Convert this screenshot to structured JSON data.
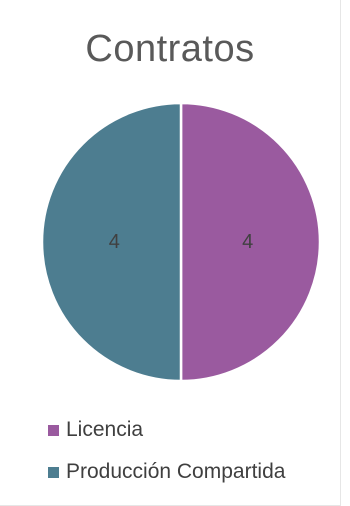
{
  "chart_data": {
    "type": "pie",
    "title": "Contratos",
    "categories": [
      "Licencia",
      "Producción Compartida"
    ],
    "values": [
      4,
      4
    ],
    "colors": [
      "#9a5a9f",
      "#4d7d90"
    ],
    "data_labels": [
      "4",
      "4"
    ],
    "legend_position": "bottom-left"
  }
}
